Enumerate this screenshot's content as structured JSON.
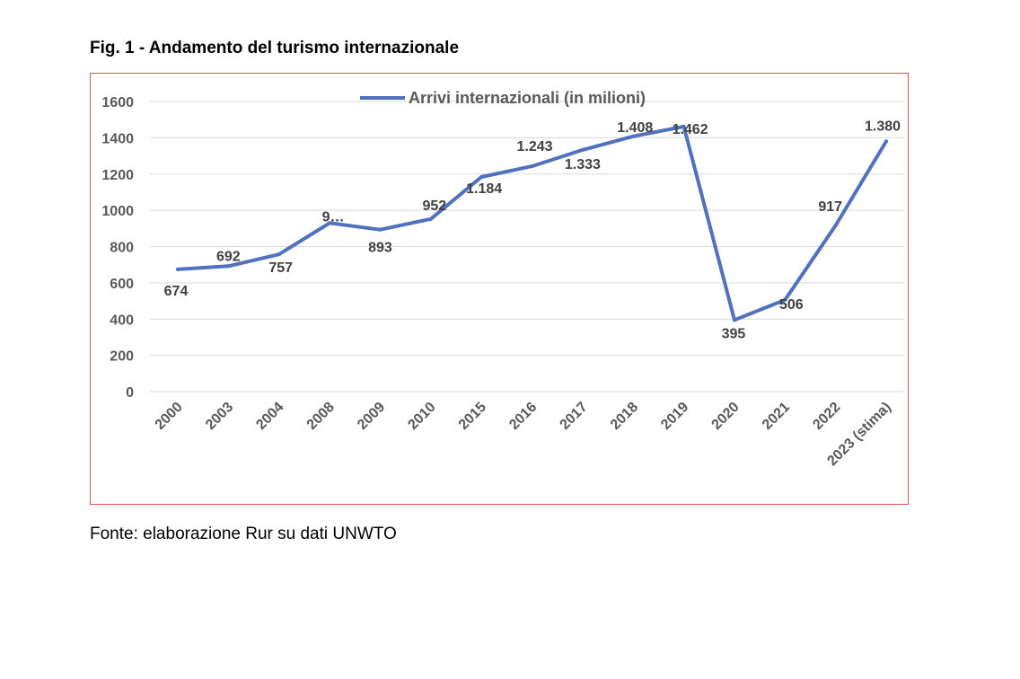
{
  "figure_title": "Fig. 1 - Andamento del turismo internazionale",
  "source_note": "Fonte: elaborazione Rur su dati UNWTO",
  "colors": {
    "series": "#4f71be",
    "frame": "#e05252",
    "grid": "#d9d9d9"
  },
  "chart_data": {
    "type": "line",
    "title": "",
    "xlabel": "",
    "ylabel": "",
    "ylim": [
      0,
      1600
    ],
    "yticks": [
      0,
      200,
      400,
      600,
      800,
      1000,
      1200,
      1400,
      1600
    ],
    "grid": true,
    "legend_position": "top",
    "categories": [
      "2000",
      "2003",
      "2004",
      "2008",
      "2009",
      "2010",
      "2015",
      "2016",
      "2017",
      "2018",
      "2019",
      "2020",
      "2021",
      "2022",
      "2023 (stima)"
    ],
    "series": [
      {
        "name": "Arrivi internazionali (in milioni)",
        "values": [
          674,
          692,
          757,
          930,
          893,
          952,
          1184,
          1243,
          1333,
          1408,
          1462,
          395,
          506,
          917,
          1380
        ],
        "labels": [
          "674",
          "692",
          "757",
          "9…",
          "893",
          "952",
          "1.184",
          "1.243",
          "1.333",
          "1.408",
          "1.462",
          "395",
          "506",
          "917",
          "1.380"
        ]
      }
    ]
  }
}
